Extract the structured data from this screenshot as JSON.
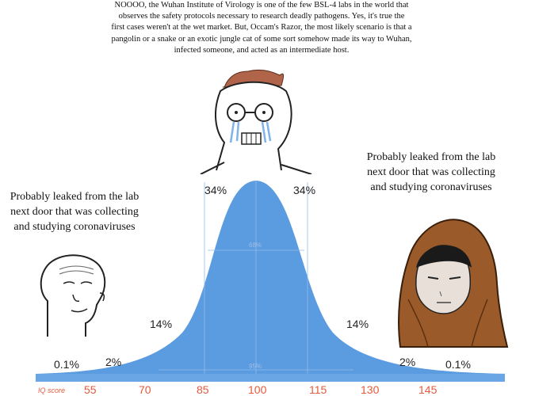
{
  "top_caption": "NOOOO, the Wuhan Institute of Virology is one of the few BSL-4 labs in the world that observes the safety protocols necessary to research deadly pathogens. Yes, it's true the first cases weren't at the wet market. But, Occam's Razor, the most likely scenario is that a pangolin or a snake or an exotic jungle cat of some sort somehow made its way to Wuhan, infected someone, and acted as an intermediate host.",
  "left_caption": "Probably leaked from the lab next door that was collecting and studying coronaviruses",
  "right_caption": "Probably leaked from the lab next door that was collecting and studying coronaviruses",
  "percent_labels": {
    "far_left": "0.1%",
    "left_tail": "2%",
    "left_mid": "14%",
    "left_center": "34%",
    "right_center": "34%",
    "right_mid": "14%",
    "right_tail": "2%",
    "far_right": "0.1%"
  },
  "inner_labels": {
    "sd1": "68%",
    "sd2": "95%"
  },
  "axis": {
    "label": "IQ score",
    "ticks": [
      "55",
      "70",
      "85",
      "100",
      "115",
      "130",
      "145"
    ]
  },
  "colors": {
    "curve": "#5b9be0",
    "axis_bar": "#6aa6e6",
    "tick_text": "#e65a3c",
    "sweat": "#7fb4ea",
    "hood": "#9a5a2a"
  }
}
